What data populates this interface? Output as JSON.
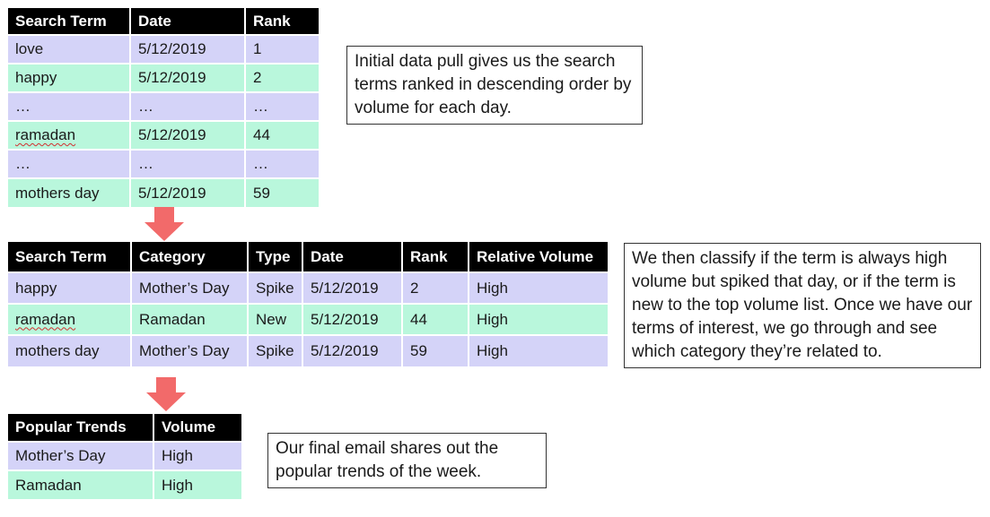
{
  "table1": {
    "headers": [
      "Search Term",
      "Date",
      "Rank"
    ],
    "rows": [
      [
        "love",
        "5/12/2019",
        "1"
      ],
      [
        "happy",
        "5/12/2019",
        "2"
      ],
      [
        "…",
        "…",
        "…"
      ],
      [
        "ramadan",
        "5/12/2019",
        "44"
      ],
      [
        "…",
        "…",
        "…"
      ],
      [
        "mothers day",
        "5/12/2019",
        "59"
      ]
    ]
  },
  "table2": {
    "headers": [
      "Search Term",
      "Category",
      "Type",
      "Date",
      "Rank",
      "Relative Volume"
    ],
    "rows": [
      [
        "happy",
        "Mother’s Day",
        "Spike",
        "5/12/2019",
        "2",
        "High"
      ],
      [
        "ramadan",
        "Ramadan",
        "New",
        "5/12/2019",
        "44",
        "High"
      ],
      [
        "mothers day",
        "Mother’s Day",
        "Spike",
        "5/12/2019",
        "59",
        "High"
      ]
    ]
  },
  "table3": {
    "headers": [
      "Popular Trends",
      "Volume"
    ],
    "rows": [
      [
        "Mother’s Day",
        "High"
      ],
      [
        "Ramadan",
        "High"
      ]
    ]
  },
  "notes": {
    "note1": "Initial data pull gives us the search terms ranked in descending order by volume for each day.",
    "note2": "We then classify if the term is always high volume but spiked that day, or if the term is new to the top volume list. Once we have our terms of interest, we go through and see which category they’re related to.",
    "note3": "Our final email shares out the popular trends of the week."
  },
  "colors": {
    "header_bg": "#000000",
    "row_purple": "#d4d3f8",
    "row_green": "#b9f7dc",
    "arrow": "#f26a6a"
  },
  "icons": [
    "down-arrow-icon",
    "down-arrow-icon"
  ]
}
